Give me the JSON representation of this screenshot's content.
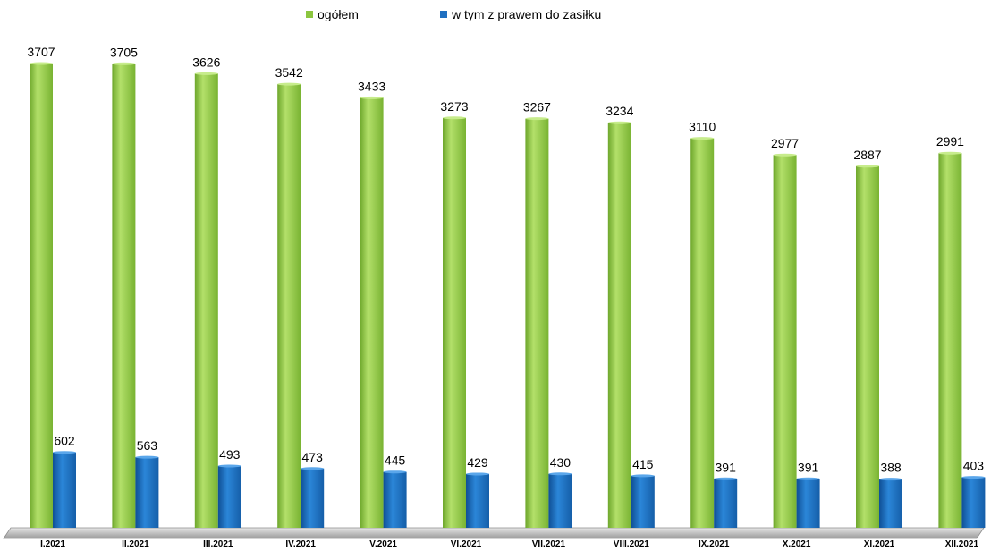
{
  "chart_data": {
    "type": "bar",
    "title": "",
    "xlabel": "",
    "ylabel": "",
    "categories": [
      "I.2021",
      "II.2021",
      "III.2021",
      "IV.2021",
      "V.2021",
      "VI.2021",
      "VII.2021",
      "VIII.2021",
      "IX.2021",
      "X.2021",
      "XI.2021",
      "XII.2021"
    ],
    "series": [
      {
        "name": "ogółem",
        "values": [
          3707,
          3705,
          3626,
          3542,
          3433,
          3273,
          3267,
          3234,
          3110,
          2977,
          2887,
          2991
        ],
        "color": "#8cc63f"
      },
      {
        "name": "w tym z prawem do zasiłku",
        "values": [
          602,
          563,
          493,
          473,
          445,
          429,
          430,
          415,
          391,
          391,
          388,
          403
        ],
        "color": "#1f6fc0"
      }
    ],
    "ylim": [
      0,
      4000
    ],
    "grid": false,
    "legend_position": "top-center",
    "data_labels": true
  }
}
